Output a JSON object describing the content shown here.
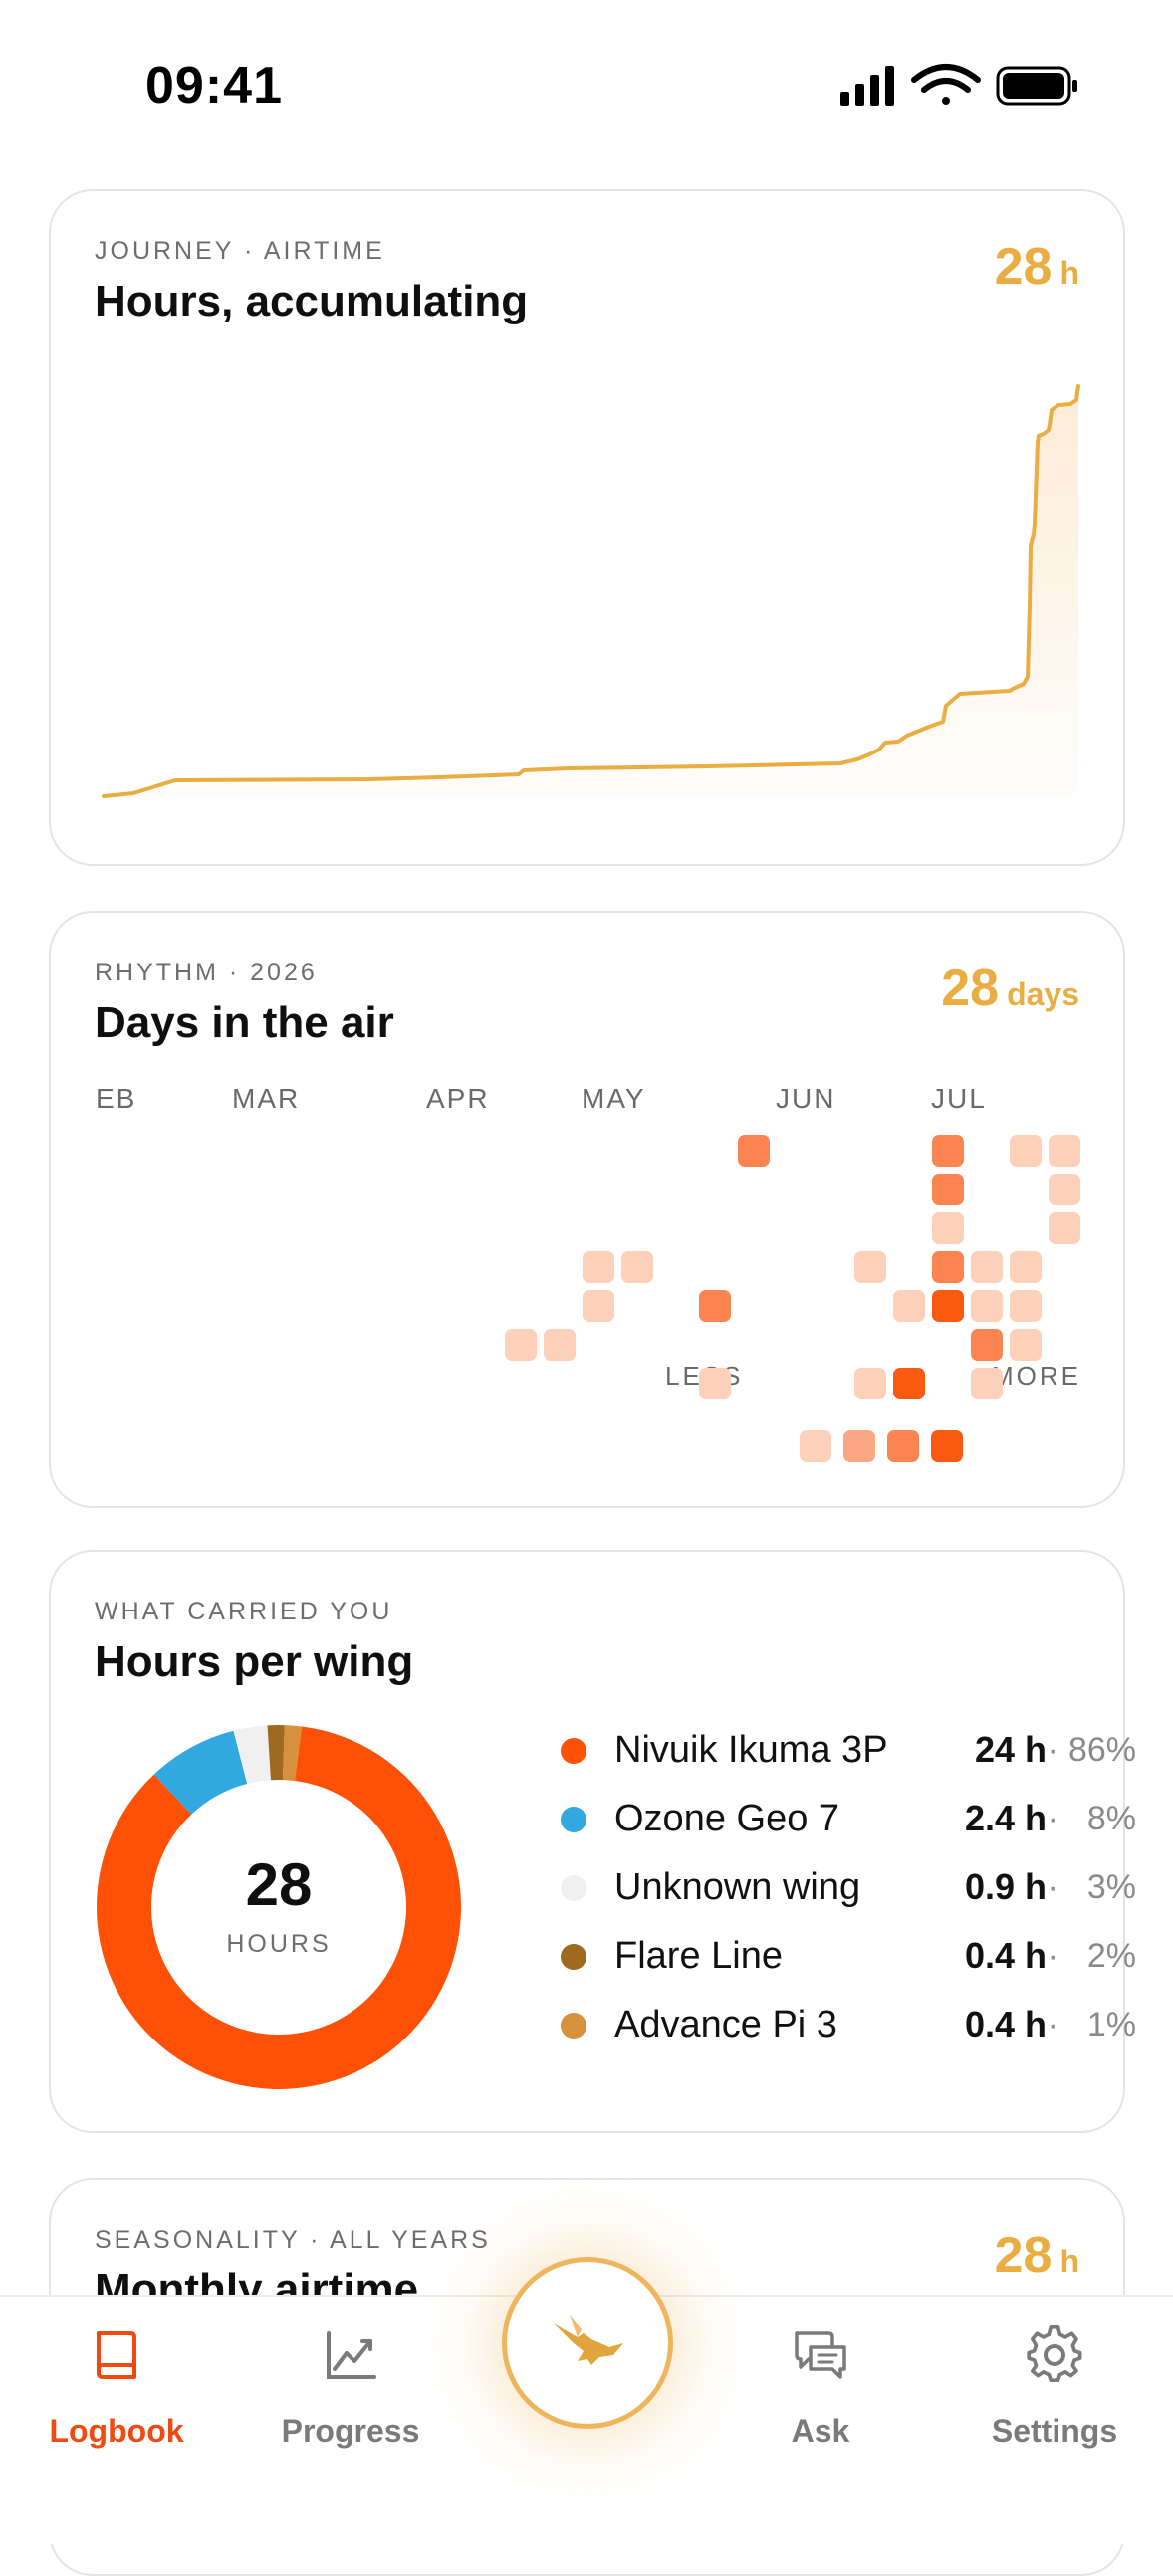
{
  "status_bar": {
    "time": "09:41"
  },
  "airtime": {
    "eyebrow": "JOURNEY · AIRTIME",
    "title": "Hours, accumulating",
    "metric_value": "28",
    "metric_unit": "h",
    "line_color": "#e9ad42"
  },
  "rhythm": {
    "eyebrow": "RHYTHM · 2026",
    "title": "Days in the air",
    "metric_value": "28",
    "metric_unit": "days",
    "months": [
      "EB",
      "MAR",
      "APR",
      "MAY",
      "JUN",
      "JUL"
    ],
    "legend_less": "LESS",
    "legend_more": "MORE",
    "intensity_colors": [
      "#fdd0b9",
      "#fca784",
      "#fc8451",
      "#fa5a0f"
    ]
  },
  "wings": {
    "eyebrow": "WHAT CARRIED YOU",
    "title": "Hours per wing",
    "total_value": "28",
    "total_label": "HOURS",
    "items": [
      {
        "name": "Nivuik Ikuma 3P",
        "hours": "24 h",
        "sep": "·",
        "pct": "86%",
        "color": "#fe5105",
        "fraction": 0.86
      },
      {
        "name": "Ozone Geo 7",
        "hours": "2.4 h",
        "sep": "·",
        "pct": "8%",
        "color": "#31a8e0",
        "fraction": 0.08
      },
      {
        "name": "Unknown wing",
        "hours": "0.9 h",
        "sep": "·",
        "pct": "3%",
        "color": "#f0f0f0",
        "fraction": 0.03
      },
      {
        "name": "Flare Line",
        "hours": "0.4 h",
        "sep": "·",
        "pct": "2%",
        "color": "#9e6a20",
        "fraction": 0.015
      },
      {
        "name": "Advance Pi 3",
        "hours": "0.4 h",
        "sep": "·",
        "pct": "1%",
        "color": "#d5913b",
        "fraction": 0.015
      }
    ]
  },
  "seasonality": {
    "eyebrow": "SEASONALITY · ALL YEARS",
    "title": "Monthly airtime",
    "metric_value": "28",
    "metric_unit": "h"
  },
  "tabs": [
    {
      "label": "Logbook",
      "icon": "book-icon",
      "active": true
    },
    {
      "label": "Progress",
      "icon": "chart-icon",
      "active": false
    },
    {
      "label": "Ask",
      "icon": "chat-icon",
      "active": false
    },
    {
      "label": "Settings",
      "icon": "gear-icon",
      "active": false
    }
  ],
  "fab": {
    "icon": "bird-icon"
  }
}
